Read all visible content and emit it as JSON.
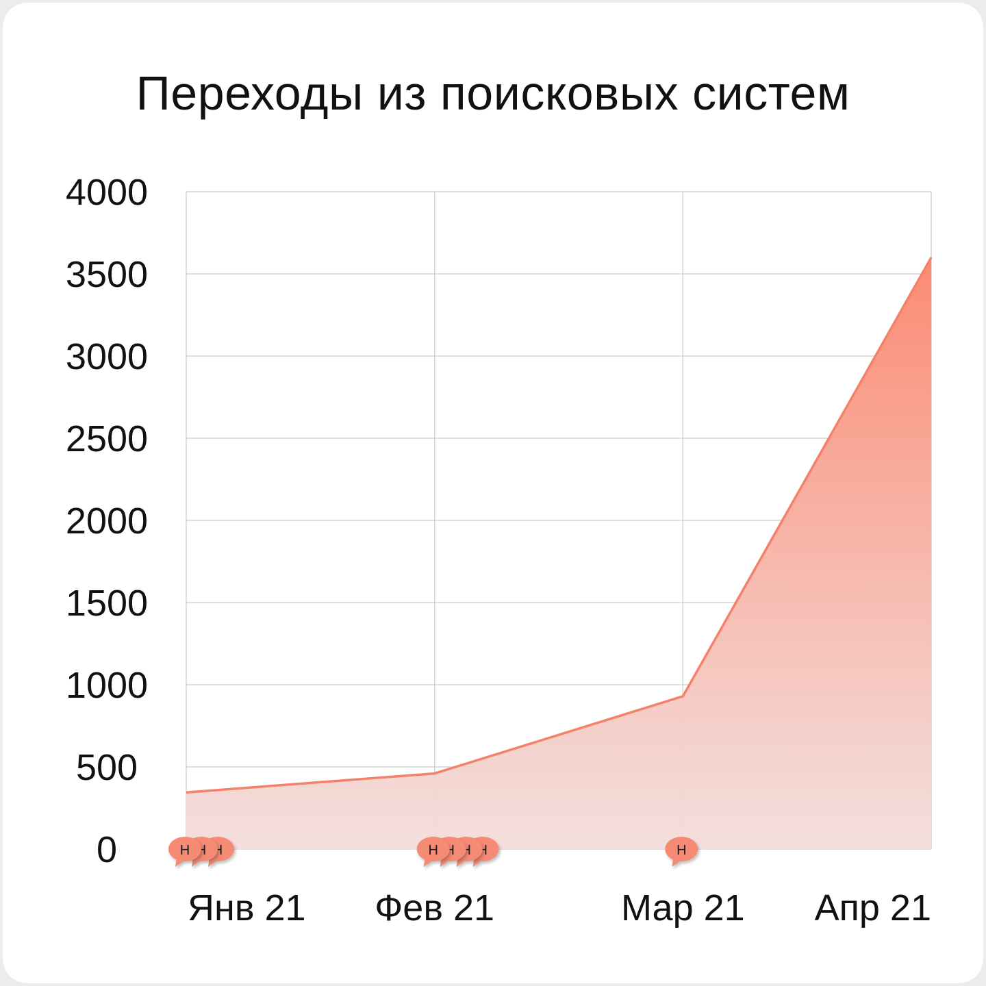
{
  "chart_data": {
    "type": "area",
    "title": "Переходы из поисковых систем",
    "xlabel": "",
    "ylabel": "",
    "categories": [
      "Янв 21",
      "Фев 21",
      "Мар 21",
      "Апр 21"
    ],
    "values": [
      345,
      460,
      930,
      3600
    ],
    "ylim": [
      0,
      4000
    ],
    "yticks": [
      0,
      500,
      1000,
      1500,
      2000,
      2500,
      3000,
      3500,
      4000
    ],
    "grid": true,
    "legend": "none",
    "colors": {
      "line": "#f4826b",
      "fill_top": "#fb8a72",
      "fill_bottom": "#f2dcda",
      "marker": "#f58a74",
      "grid": "#d4d4d4"
    },
    "annotations": [
      {
        "x": "Янв 21",
        "count": 3,
        "letter": "Н"
      },
      {
        "x": "Фев 21",
        "count": 4,
        "letter": "Н"
      },
      {
        "x": "Мар 21",
        "count": 1,
        "letter": "Н"
      }
    ]
  }
}
